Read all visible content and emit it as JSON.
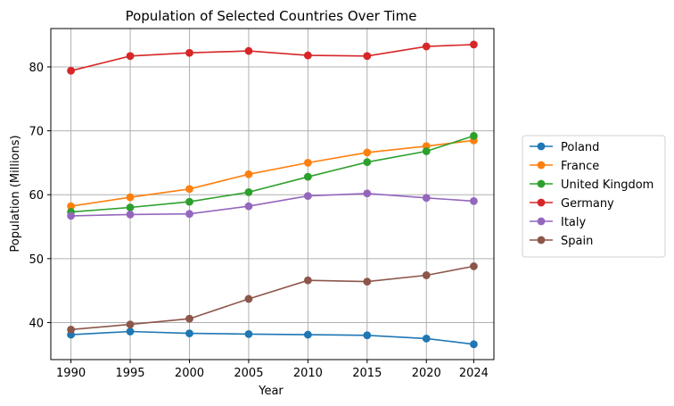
{
  "chart_data": {
    "type": "line",
    "title": "Population of Selected Countries Over Time",
    "xlabel": "Year",
    "ylabel": "Population (Millions)",
    "x": [
      1990,
      1995,
      2000,
      2005,
      2010,
      2015,
      2020,
      2024
    ],
    "xlim": [
      1988.3,
      2025.7
    ],
    "ylim": [
      34.2,
      86.0
    ],
    "yticks": [
      40,
      50,
      60,
      70,
      80
    ],
    "grid": true,
    "legend_position": "right",
    "series": [
      {
        "name": "Poland",
        "color": "#1f77b4",
        "values": [
          38.1,
          38.6,
          38.3,
          38.2,
          38.1,
          38.0,
          37.5,
          36.6
        ]
      },
      {
        "name": "France",
        "color": "#ff7f0e",
        "values": [
          58.2,
          59.6,
          60.9,
          63.2,
          65.0,
          66.6,
          67.6,
          68.5
        ]
      },
      {
        "name": "United Kingdom",
        "color": "#2ca02c",
        "values": [
          57.3,
          58.0,
          58.9,
          60.4,
          62.8,
          65.1,
          66.8,
          69.2
        ]
      },
      {
        "name": "Germany",
        "color": "#d62728",
        "values": [
          79.4,
          81.7,
          82.2,
          82.5,
          81.8,
          81.7,
          83.2,
          83.5
        ]
      },
      {
        "name": "Italy",
        "color": "#9467bd",
        "values": [
          56.7,
          56.9,
          57.0,
          58.2,
          59.8,
          60.2,
          59.5,
          59.0
        ]
      },
      {
        "name": "Spain",
        "color": "#8c564b",
        "values": [
          38.9,
          39.7,
          40.6,
          43.7,
          46.6,
          46.4,
          47.4,
          48.8
        ]
      }
    ]
  }
}
